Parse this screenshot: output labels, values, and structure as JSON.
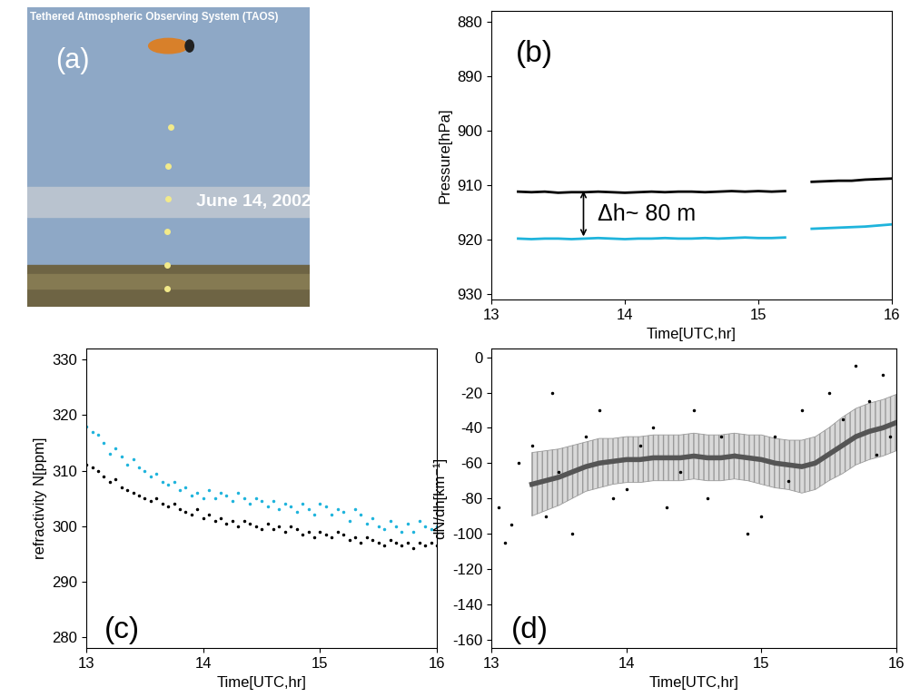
{
  "chart_data": [
    {
      "type": "image",
      "title": "Tethered Atmospheric Observing System (TAOS)",
      "label": "(a)",
      "annotation": "June 14, 2002"
    },
    {
      "type": "line",
      "label": "(b)",
      "annotation": "Δh~ 80 m",
      "x_label": "Time[UTC,hr]",
      "y_label": "Pressure[hPa]",
      "x": [
        13.2,
        13.3,
        13.4,
        13.5,
        13.6,
        13.7,
        13.8,
        13.9,
        14.0,
        14.1,
        14.2,
        14.3,
        14.4,
        14.5,
        14.6,
        14.7,
        14.8,
        14.9,
        15.0,
        15.1,
        15.2,
        15.3,
        15.4,
        15.5,
        15.6,
        15.7,
        15.8,
        15.9,
        16.0
      ],
      "series": [
        {
          "color": "#000000",
          "line_style": "solid",
          "marker": "none",
          "values": [
            911.2,
            911.3,
            911.2,
            911.4,
            911.3,
            911.3,
            911.2,
            911.3,
            911.4,
            911.3,
            911.2,
            911.3,
            911.2,
            911.2,
            911.3,
            911.2,
            911.1,
            911.2,
            911.1,
            911.2,
            911.1,
            null,
            909.4,
            909.3,
            909.2,
            909.2,
            909.0,
            908.9,
            908.8
          ]
        },
        {
          "color": "#1fb4dc",
          "line_style": "solid",
          "marker": "none",
          "values": [
            919.8,
            919.9,
            919.8,
            919.8,
            919.9,
            919.8,
            919.7,
            919.8,
            919.9,
            919.8,
            919.8,
            919.7,
            919.8,
            919.8,
            919.7,
            919.8,
            919.7,
            919.6,
            919.7,
            919.7,
            919.6,
            null,
            918.0,
            917.9,
            917.8,
            917.7,
            917.6,
            917.4,
            917.2
          ]
        }
      ],
      "xlim": [
        13,
        16
      ],
      "xticks": [
        13,
        14,
        15,
        16
      ],
      "ylim": [
        931,
        878
      ],
      "yticks": [
        880,
        890,
        900,
        910,
        920,
        930
      ]
    },
    {
      "type": "scatter",
      "label": "(c)",
      "x_label": "Time[UTC,hr]",
      "y_label": "refractivity N[ppm]",
      "x": [
        13.0,
        13.05,
        13.1,
        13.15,
        13.2,
        13.25,
        13.3,
        13.35,
        13.4,
        13.45,
        13.5,
        13.55,
        13.6,
        13.65,
        13.7,
        13.75,
        13.8,
        13.85,
        13.9,
        13.95,
        14.0,
        14.05,
        14.1,
        14.15,
        14.2,
        14.25,
        14.3,
        14.35,
        14.4,
        14.45,
        14.5,
        14.55,
        14.6,
        14.65,
        14.7,
        14.75,
        14.8,
        14.85,
        14.9,
        14.95,
        15.0,
        15.05,
        15.1,
        15.15,
        15.2,
        15.25,
        15.3,
        15.35,
        15.4,
        15.45,
        15.5,
        15.55,
        15.6,
        15.65,
        15.7,
        15.75,
        15.8,
        15.85,
        15.9,
        15.95,
        16.0
      ],
      "series": [
        {
          "color": "#1fb4dc",
          "marker": "dot",
          "values": [
            318,
            317,
            316.5,
            315,
            313,
            314,
            312.5,
            311,
            312,
            310.5,
            310,
            309,
            309.5,
            308,
            307.5,
            308,
            306.5,
            307,
            305.5,
            306,
            305,
            306.5,
            305,
            306,
            305.5,
            304.5,
            306,
            305,
            304,
            305,
            304.5,
            303.5,
            304.5,
            303,
            304,
            303.5,
            302.5,
            304,
            303,
            302,
            304,
            303.5,
            302,
            303,
            302.5,
            301,
            303,
            302,
            300.5,
            301.5,
            300,
            299.5,
            301,
            300,
            299,
            300.5,
            299,
            301,
            300,
            299.5,
            300
          ]
        },
        {
          "color": "#000000",
          "marker": "dot",
          "values": [
            311,
            310.5,
            310,
            309,
            308,
            308.5,
            307,
            306.5,
            306,
            305.5,
            305,
            304.5,
            305,
            304,
            303.5,
            304,
            303,
            302.5,
            302,
            303,
            301.5,
            302,
            301,
            301.5,
            300.5,
            301,
            300,
            301,
            300.5,
            300,
            299.5,
            300.5,
            299.5,
            300,
            299,
            300,
            299.5,
            298.5,
            299,
            298,
            299,
            298.5,
            298,
            299,
            298.5,
            297.5,
            298,
            297,
            298,
            297.5,
            297,
            296.5,
            297.5,
            297,
            296.5,
            297,
            296,
            297,
            296.5,
            297,
            296.5
          ]
        }
      ],
      "xlim": [
        13,
        16
      ],
      "xticks": [
        13,
        14,
        15,
        16
      ],
      "ylim": [
        278,
        332
      ],
      "yticks": [
        280,
        290,
        300,
        310,
        320,
        330
      ]
    },
    {
      "type": "line",
      "label": "(d)",
      "x_label": "Time[UTC,hr]",
      "y_label": "dN/dh[km⁻¹]",
      "x": [
        13.3,
        13.4,
        13.5,
        13.6,
        13.7,
        13.8,
        13.9,
        14.0,
        14.1,
        14.2,
        14.3,
        14.4,
        14.5,
        14.6,
        14.7,
        14.8,
        14.9,
        15.0,
        15.1,
        15.2,
        15.3,
        15.4,
        15.5,
        15.6,
        15.7,
        15.8,
        15.9,
        16.0
      ],
      "series": [
        {
          "type": "scatter",
          "color": "#000000",
          "marker": "dot",
          "x": [
            13.05,
            13.1,
            13.15,
            13.2,
            13.3,
            13.4,
            13.45,
            13.5,
            13.6,
            13.7,
            13.8,
            13.9,
            14.0,
            14.1,
            14.2,
            14.3,
            14.4,
            14.5,
            14.6,
            14.7,
            14.8,
            14.9,
            15.0,
            15.1,
            15.2,
            15.3,
            15.4,
            15.5,
            15.6,
            15.7,
            15.8,
            15.85,
            15.9,
            15.95
          ],
          "values": [
            -85,
            -105,
            -95,
            -60,
            -50,
            -90,
            -20,
            -65,
            -100,
            -45,
            -30,
            -80,
            -75,
            -50,
            -40,
            -85,
            -65,
            -30,
            -80,
            -45,
            -55,
            -100,
            -90,
            -45,
            -70,
            -30,
            -60,
            -20,
            -35,
            -5,
            -25,
            -55,
            -10,
            -45
          ]
        },
        {
          "type": "line",
          "color": "#555555",
          "line_style": "solid",
          "marker": "none",
          "values": [
            -72,
            -70,
            -68,
            -65,
            -62,
            -60,
            -59,
            -58,
            -58,
            -57,
            -57,
            -57,
            -56,
            -57,
            -57,
            -56,
            -57,
            -58,
            -60,
            -61,
            -62,
            -60,
            -55,
            -50,
            -45,
            -42,
            -40,
            -37
          ],
          "error": [
            18,
            17,
            16,
            15,
            14,
            14,
            13,
            13,
            13,
            13,
            13,
            13,
            13,
            13,
            13,
            13,
            13,
            14,
            14,
            14,
            15,
            15,
            15,
            16,
            16,
            16,
            16,
            16
          ]
        }
      ],
      "xlim": [
        13,
        16
      ],
      "xticks": [
        13,
        14,
        15,
        16
      ],
      "ylim": [
        -165,
        5
      ],
      "yticks": [
        -160,
        -140,
        -120,
        -100,
        -80,
        -60,
        -40,
        -20,
        0
      ]
    }
  ]
}
